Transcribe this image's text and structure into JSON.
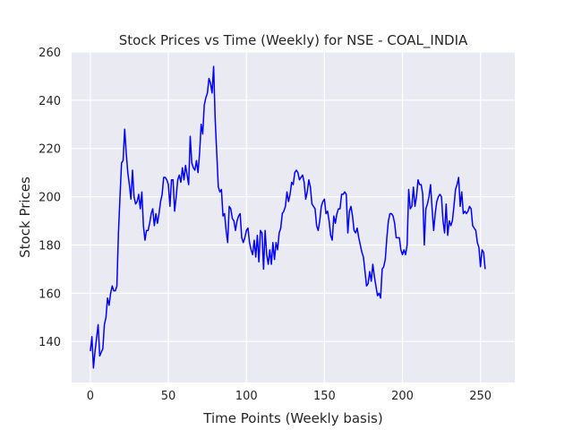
{
  "chart_data": {
    "type": "line",
    "title": "Stock Prices vs Time (Weekly) for NSE - COAL_INDIA",
    "xlabel": "Time Points (Weekly basis)",
    "ylabel": "Stock Prices",
    "xlim": [
      -12,
      272
    ],
    "ylim": [
      123,
      260
    ],
    "xticks": [
      0,
      50,
      100,
      150,
      200,
      250
    ],
    "yticks": [
      140,
      160,
      180,
      200,
      220,
      240,
      260
    ],
    "grid": true,
    "line_color": "#0000ff",
    "background_color": "#eaeaf2",
    "grid_color": "#ffffff",
    "points": [
      [
        0,
        136
      ],
      [
        1,
        142
      ],
      [
        2,
        129
      ],
      [
        3,
        136
      ],
      [
        5,
        147
      ],
      [
        6,
        134
      ],
      [
        8,
        137
      ],
      [
        9,
        147
      ],
      [
        10,
        150
      ],
      [
        11,
        158
      ],
      [
        12,
        155
      ],
      [
        13,
        160
      ],
      [
        14,
        163
      ],
      [
        15,
        161
      ],
      [
        16,
        161
      ],
      [
        17,
        163
      ],
      [
        18,
        185
      ],
      [
        19,
        200
      ],
      [
        20,
        214
      ],
      [
        21,
        215
      ],
      [
        22,
        228
      ],
      [
        23,
        218
      ],
      [
        24,
        210
      ],
      [
        25,
        205
      ],
      [
        26,
        199
      ],
      [
        27,
        211
      ],
      [
        28,
        200
      ],
      [
        29,
        197
      ],
      [
        30,
        198
      ],
      [
        31,
        201
      ],
      [
        32,
        195
      ],
      [
        33,
        202
      ],
      [
        34,
        188
      ],
      [
        35,
        182
      ],
      [
        36,
        186
      ],
      [
        37,
        186
      ],
      [
        38,
        189
      ],
      [
        39,
        193
      ],
      [
        40,
        195
      ],
      [
        41,
        188
      ],
      [
        42,
        193
      ],
      [
        43,
        189
      ],
      [
        44,
        193
      ],
      [
        45,
        198
      ],
      [
        46,
        201
      ],
      [
        47,
        208
      ],
      [
        48,
        208
      ],
      [
        49,
        207
      ],
      [
        50,
        205
      ],
      [
        51,
        196
      ],
      [
        52,
        207
      ],
      [
        53,
        207
      ],
      [
        54,
        194
      ],
      [
        55,
        200
      ],
      [
        56,
        207
      ],
      [
        57,
        209
      ],
      [
        58,
        206
      ],
      [
        59,
        212
      ],
      [
        60,
        207
      ],
      [
        61,
        213
      ],
      [
        62,
        209
      ],
      [
        63,
        205
      ],
      [
        64,
        225
      ],
      [
        65,
        214
      ],
      [
        66,
        212
      ],
      [
        67,
        211
      ],
      [
        68,
        215
      ],
      [
        69,
        210
      ],
      [
        70,
        218
      ],
      [
        71,
        230
      ],
      [
        72,
        226
      ],
      [
        73,
        238
      ],
      [
        74,
        241
      ],
      [
        75,
        243
      ],
      [
        76,
        249
      ],
      [
        77,
        247
      ],
      [
        78,
        243
      ],
      [
        79,
        254
      ],
      [
        80,
        232
      ],
      [
        81,
        218
      ],
      [
        82,
        204
      ],
      [
        83,
        202
      ],
      [
        84,
        203
      ],
      [
        85,
        192
      ],
      [
        86,
        193
      ],
      [
        87,
        186
      ],
      [
        88,
        181
      ],
      [
        89,
        196
      ],
      [
        90,
        195
      ],
      [
        91,
        191
      ],
      [
        92,
        190
      ],
      [
        93,
        186
      ],
      [
        94,
        190
      ],
      [
        95,
        192
      ],
      [
        96,
        193
      ],
      [
        97,
        183
      ],
      [
        98,
        181
      ],
      [
        99,
        183
      ],
      [
        100,
        186
      ],
      [
        101,
        187
      ],
      [
        102,
        181
      ],
      [
        103,
        178
      ],
      [
        104,
        176
      ],
      [
        105,
        182
      ],
      [
        106,
        175
      ],
      [
        107,
        184
      ],
      [
        108,
        173
      ],
      [
        109,
        186
      ],
      [
        110,
        185
      ],
      [
        111,
        170
      ],
      [
        112,
        186
      ],
      [
        113,
        176
      ],
      [
        114,
        172
      ],
      [
        115,
        178
      ],
      [
        116,
        172
      ],
      [
        117,
        181
      ],
      [
        118,
        174
      ],
      [
        119,
        181
      ],
      [
        120,
        178
      ],
      [
        121,
        185
      ],
      [
        122,
        187
      ],
      [
        123,
        193
      ],
      [
        124,
        194
      ],
      [
        125,
        196
      ],
      [
        126,
        202
      ],
      [
        127,
        198
      ],
      [
        128,
        201
      ],
      [
        129,
        206
      ],
      [
        130,
        205
      ],
      [
        131,
        210
      ],
      [
        132,
        211
      ],
      [
        133,
        210
      ],
      [
        134,
        207
      ],
      [
        135,
        208
      ],
      [
        136,
        209
      ],
      [
        137,
        206
      ],
      [
        138,
        199
      ],
      [
        139,
        202
      ],
      [
        140,
        207
      ],
      [
        141,
        204
      ],
      [
        142,
        197
      ],
      [
        143,
        196
      ],
      [
        144,
        195
      ],
      [
        145,
        188
      ],
      [
        146,
        186
      ],
      [
        147,
        190
      ],
      [
        148,
        196
      ],
      [
        149,
        198
      ],
      [
        150,
        199
      ],
      [
        151,
        193
      ],
      [
        152,
        194
      ],
      [
        153,
        190
      ],
      [
        154,
        184
      ],
      [
        155,
        182
      ],
      [
        156,
        192
      ],
      [
        157,
        189
      ],
      [
        158,
        193
      ],
      [
        159,
        195
      ],
      [
        160,
        195
      ],
      [
        161,
        201
      ],
      [
        162,
        201
      ],
      [
        163,
        202
      ],
      [
        164,
        201
      ],
      [
        165,
        185
      ],
      [
        166,
        194
      ],
      [
        167,
        196
      ],
      [
        168,
        192
      ],
      [
        169,
        186
      ],
      [
        170,
        185
      ],
      [
        171,
        187
      ],
      [
        172,
        183
      ],
      [
        173,
        180
      ],
      [
        174,
        177
      ],
      [
        175,
        175
      ],
      [
        176,
        169
      ],
      [
        177,
        163
      ],
      [
        178,
        164
      ],
      [
        179,
        169
      ],
      [
        180,
        165
      ],
      [
        181,
        172
      ],
      [
        182,
        167
      ],
      [
        183,
        163
      ],
      [
        184,
        159
      ],
      [
        185,
        160
      ],
      [
        186,
        158
      ],
      [
        187,
        170
      ],
      [
        188,
        171
      ],
      [
        189,
        174
      ],
      [
        190,
        183
      ],
      [
        191,
        190
      ],
      [
        192,
        193
      ],
      [
        193,
        193
      ],
      [
        194,
        192
      ],
      [
        195,
        189
      ],
      [
        196,
        183
      ],
      [
        197,
        183
      ],
      [
        198,
        183
      ],
      [
        199,
        178
      ],
      [
        200,
        176
      ],
      [
        201,
        178
      ],
      [
        202,
        176
      ],
      [
        203,
        180
      ],
      [
        204,
        203
      ],
      [
        205,
        195
      ],
      [
        206,
        196
      ],
      [
        207,
        204
      ],
      [
        208,
        196
      ],
      [
        209,
        200
      ],
      [
        210,
        207
      ],
      [
        211,
        205
      ],
      [
        212,
        205
      ],
      [
        213,
        201
      ],
      [
        214,
        180
      ],
      [
        215,
        195
      ],
      [
        216,
        197
      ],
      [
        217,
        200
      ],
      [
        218,
        205
      ],
      [
        219,
        195
      ],
      [
        220,
        186
      ],
      [
        221,
        193
      ],
      [
        222,
        198
      ],
      [
        223,
        200
      ],
      [
        224,
        201
      ],
      [
        225,
        200
      ],
      [
        226,
        190
      ],
      [
        227,
        185
      ],
      [
        228,
        197
      ],
      [
        229,
        184
      ],
      [
        230,
        190
      ],
      [
        231,
        188
      ],
      [
        232,
        190
      ],
      [
        233,
        196
      ],
      [
        234,
        203
      ],
      [
        235,
        205
      ],
      [
        236,
        208
      ],
      [
        237,
        196
      ],
      [
        238,
        202
      ],
      [
        239,
        193
      ],
      [
        240,
        194
      ],
      [
        241,
        193
      ],
      [
        242,
        194
      ],
      [
        243,
        196
      ],
      [
        244,
        195
      ],
      [
        245,
        188
      ],
      [
        246,
        187
      ],
      [
        247,
        186
      ],
      [
        248,
        181
      ],
      [
        249,
        179
      ],
      [
        250,
        171
      ],
      [
        251,
        178
      ],
      [
        252,
        177
      ],
      [
        253,
        170
      ]
    ]
  }
}
